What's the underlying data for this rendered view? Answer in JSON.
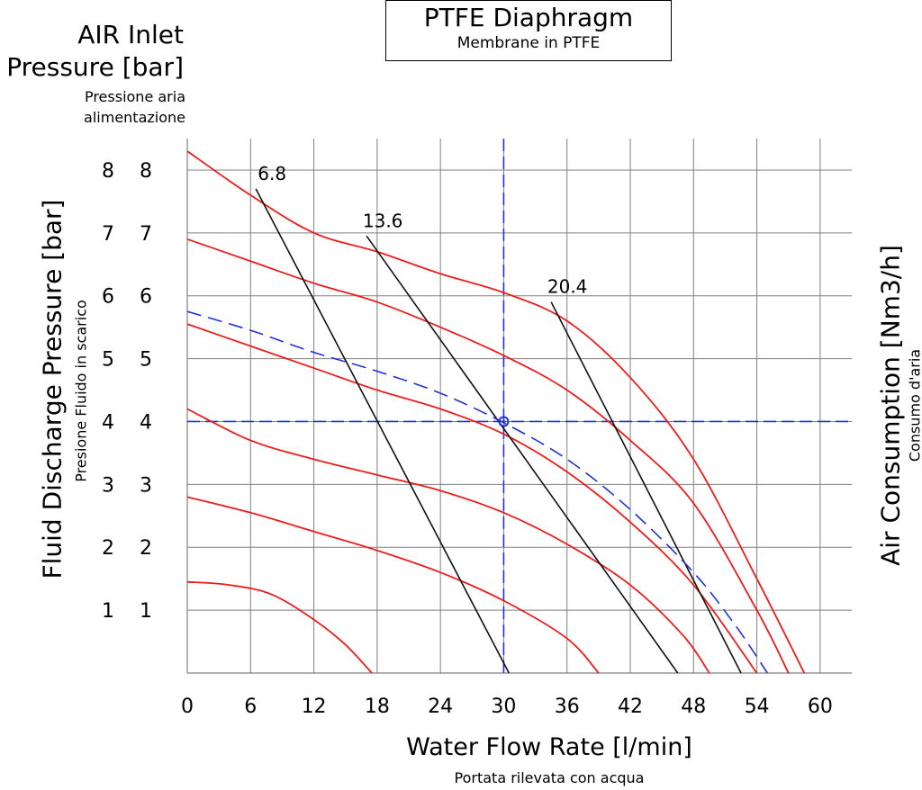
{
  "title": "PTFE Diaphragm",
  "subtitle": "Membrane in PTFE",
  "left_axis_title": [
    "AIR Inlet",
    "Pressure [bar]"
  ],
  "left_axis_subtitle": [
    "Pressione aria",
    "alimentazione"
  ],
  "y_axis_title": "Fluid Discharge Pressure [bar]",
  "y_axis_subtitle": "Presione Fluido in scarico",
  "right_axis_title": "Air Consumption [Nm3/h]",
  "right_axis_subtitle": "Consumo d'aria",
  "x_axis_title": "Water Flow Rate [l/min]",
  "x_axis_subtitle": "Portata rilevata con acqua",
  "colors": {
    "grid": "#808080",
    "pressure_curves": "#ee1c1c",
    "air_lines": "#111111",
    "operating_point": "#2230d8"
  },
  "chart_data": {
    "type": "line",
    "xlim": [
      0,
      63
    ],
    "ylim": [
      0,
      8.5
    ],
    "x_ticks": [
      "0",
      "6",
      "12",
      "18",
      "24",
      "30",
      "36",
      "42",
      "48",
      "54",
      "60"
    ],
    "y_ticks": [
      "1",
      "2",
      "3",
      "4",
      "5",
      "6",
      "7",
      "8"
    ],
    "air_inlet_ticks": [
      "1",
      "2",
      "3",
      "4",
      "5",
      "6",
      "7",
      "8"
    ],
    "grid": true,
    "series": [
      {
        "kind": "pressure",
        "points": [
          [
            0,
            8.3
          ],
          [
            6,
            7.6
          ],
          [
            12,
            7.0
          ],
          [
            18,
            6.7
          ],
          [
            24,
            6.35
          ],
          [
            30,
            6.05
          ],
          [
            36,
            5.6
          ],
          [
            42,
            4.7
          ],
          [
            48,
            3.4
          ],
          [
            54,
            1.5
          ],
          [
            58.5,
            0
          ]
        ]
      },
      {
        "kind": "pressure",
        "points": [
          [
            0,
            6.9
          ],
          [
            6,
            6.55
          ],
          [
            12,
            6.2
          ],
          [
            18,
            5.9
          ],
          [
            24,
            5.5
          ],
          [
            30,
            5.05
          ],
          [
            36,
            4.5
          ],
          [
            42,
            3.7
          ],
          [
            48,
            2.7
          ],
          [
            54,
            1.0
          ],
          [
            57,
            0
          ]
        ]
      },
      {
        "kind": "pressure",
        "points": [
          [
            0,
            5.55
          ],
          [
            6,
            5.2
          ],
          [
            12,
            4.85
          ],
          [
            18,
            4.5
          ],
          [
            24,
            4.2
          ],
          [
            30,
            3.8
          ],
          [
            36,
            3.2
          ],
          [
            42,
            2.4
          ],
          [
            48,
            1.4
          ],
          [
            54,
            0
          ]
        ]
      },
      {
        "kind": "pressure",
        "points": [
          [
            0,
            4.2
          ],
          [
            6,
            3.7
          ],
          [
            12,
            3.4
          ],
          [
            18,
            3.15
          ],
          [
            24,
            2.9
          ],
          [
            30,
            2.55
          ],
          [
            36,
            2.05
          ],
          [
            42,
            1.4
          ],
          [
            47,
            0.6
          ],
          [
            49.5,
            0
          ]
        ]
      },
      {
        "kind": "pressure",
        "points": [
          [
            0,
            2.8
          ],
          [
            6,
            2.55
          ],
          [
            12,
            2.25
          ],
          [
            18,
            1.95
          ],
          [
            24,
            1.6
          ],
          [
            30,
            1.15
          ],
          [
            36,
            0.55
          ],
          [
            39,
            0
          ]
        ]
      },
      {
        "kind": "pressure",
        "points": [
          [
            0,
            1.45
          ],
          [
            4,
            1.4
          ],
          [
            8,
            1.25
          ],
          [
            12,
            0.85
          ],
          [
            15,
            0.45
          ],
          [
            17.5,
            0
          ]
        ]
      },
      {
        "kind": "air_consumption",
        "name": "6.8",
        "points": [
          [
            6.5,
            7.7
          ],
          [
            30.5,
            0
          ]
        ]
      },
      {
        "kind": "air_consumption",
        "name": "13.6",
        "points": [
          [
            17,
            6.95
          ],
          [
            46.5,
            0
          ]
        ]
      },
      {
        "kind": "air_consumption",
        "name": "20.4",
        "points": [
          [
            34.5,
            5.9
          ],
          [
            52.5,
            0
          ]
        ]
      },
      {
        "kind": "operating_curve",
        "points": [
          [
            0,
            5.75
          ],
          [
            6,
            5.45
          ],
          [
            12,
            5.1
          ],
          [
            18,
            4.8
          ],
          [
            24,
            4.45
          ],
          [
            30,
            3.98
          ],
          [
            36,
            3.4
          ],
          [
            42,
            2.6
          ],
          [
            48,
            1.6
          ],
          [
            52,
            0.75
          ],
          [
            55,
            0
          ]
        ]
      }
    ],
    "operating_point": {
      "x": 30,
      "y": 4
    }
  }
}
